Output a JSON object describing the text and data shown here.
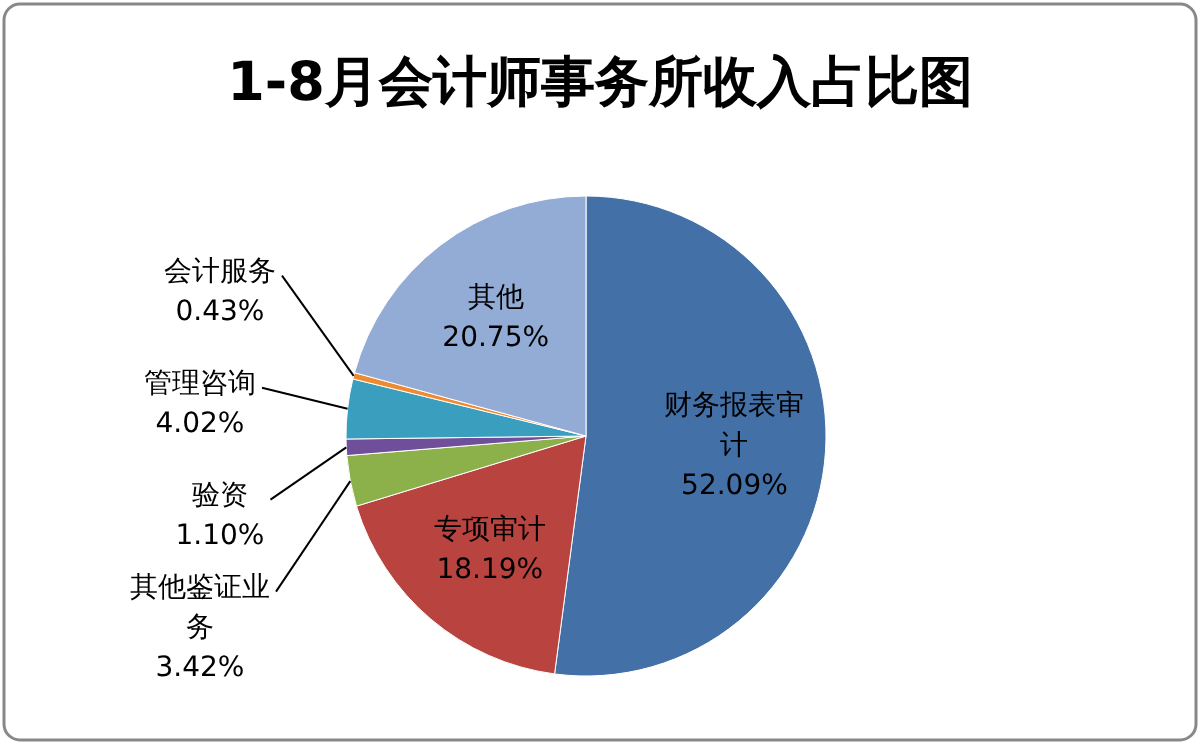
{
  "chart_data": {
    "type": "pie",
    "title": "1-8月会计师事务所收入占比图",
    "categories": [
      "财务报表审计",
      "专项审计",
      "其他鉴证业务",
      "验资",
      "管理咨询",
      "会计服务",
      "其他"
    ],
    "values": [
      52.09,
      18.19,
      3.42,
      1.1,
      4.02,
      0.43,
      20.75
    ],
    "value_labels": [
      "52.09%",
      "18.19%",
      "3.42%",
      "1.10%",
      "4.02%",
      "0.43%",
      "20.75%"
    ],
    "colors": [
      "#4470a8",
      "#b8433f",
      "#8cb14a",
      "#6f4f99",
      "#3a9fbf",
      "#f08a30",
      "#93acd5"
    ]
  }
}
